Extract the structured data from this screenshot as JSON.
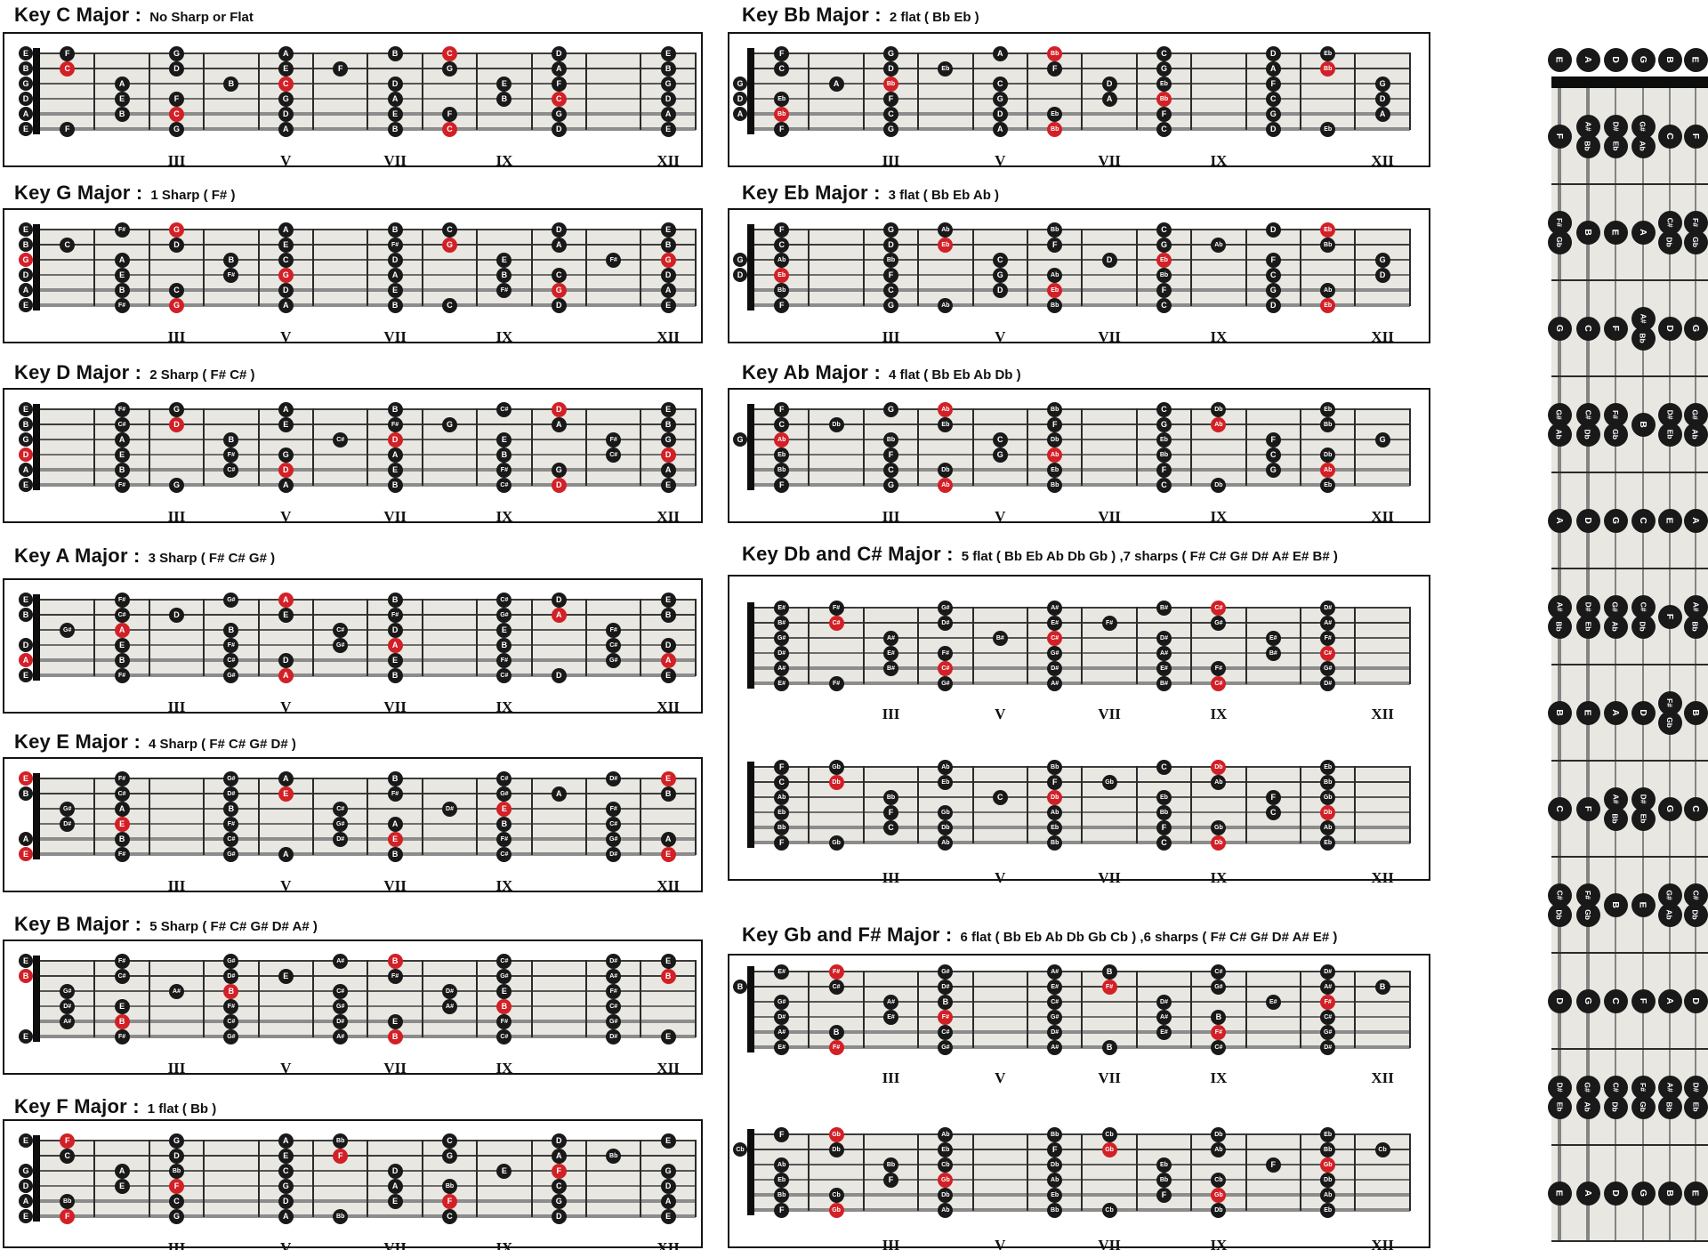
{
  "colors": {
    "root_red": "#d22027",
    "note_black": "#191919",
    "fretboard_bg": "#e9e7e1",
    "box_border": "#141414",
    "fret_line": "#2b2b2b",
    "nut_black": "#0d0d0d",
    "string_thin": "#3c3c3c",
    "string_mid": "#6e6e6e",
    "string_thick": "#8c8c8c",
    "numeral_color": "#111111",
    "page_bg": "#ffffff"
  },
  "fret_numerals": [
    {
      "fret": 3,
      "label": "III"
    },
    {
      "fret": 5,
      "label": "V"
    },
    {
      "fret": 7,
      "label": "VII"
    },
    {
      "fret": 9,
      "label": "IX"
    },
    {
      "fret": 12,
      "label": "XII"
    }
  ],
  "tuning_pitch_classes": [
    4,
    11,
    7,
    2,
    9,
    4
  ],
  "pitch_classes": {
    "C": 0,
    "C#": 1,
    "Db": 1,
    "D": 2,
    "D#": 3,
    "Eb": 3,
    "E": 4,
    "E#": 5,
    "F": 5,
    "F#": 6,
    "Gb": 6,
    "G": 7,
    "G#": 8,
    "Ab": 8,
    "A": 9,
    "A#": 10,
    "Bb": 10,
    "B": 11,
    "B#": 0,
    "Cb": 11
  },
  "sections": [
    {
      "id": "c-major",
      "title": "Key C Major :",
      "subtitle": "No Sharp or Flat",
      "boards": [
        {
          "root": "C",
          "scale": [
            "C",
            "D",
            "E",
            "F",
            "G",
            "A",
            "B"
          ]
        }
      ]
    },
    {
      "id": "g-major",
      "title": "Key G Major :",
      "subtitle": "1 Sharp ( F# )",
      "boards": [
        {
          "root": "G",
          "scale": [
            "G",
            "A",
            "B",
            "C",
            "D",
            "E",
            "F#"
          ]
        }
      ]
    },
    {
      "id": "d-major",
      "title": "Key D Major :",
      "subtitle": "2 Sharp  ( F# C# )",
      "boards": [
        {
          "root": "D",
          "scale": [
            "D",
            "E",
            "F#",
            "G",
            "A",
            "B",
            "C#"
          ]
        }
      ]
    },
    {
      "id": "a-major",
      "title": "Key A Major :",
      "subtitle": "3 Sharp  ( F# C# G# )",
      "boards": [
        {
          "root": "A",
          "scale": [
            "A",
            "B",
            "C#",
            "D",
            "E",
            "F#",
            "G#"
          ]
        }
      ]
    },
    {
      "id": "e-major",
      "title": "Key E Major :",
      "subtitle": "4 Sharp  ( F# C# G# D# )",
      "boards": [
        {
          "root": "E",
          "scale": [
            "E",
            "F#",
            "G#",
            "A",
            "B",
            "C#",
            "D#"
          ]
        }
      ]
    },
    {
      "id": "b-major",
      "title": "Key B Major :",
      "subtitle": "5 Sharp  ( F# C# G# D# A# )",
      "boards": [
        {
          "root": "B",
          "scale": [
            "B",
            "C#",
            "D#",
            "E",
            "F#",
            "G#",
            "A#"
          ]
        }
      ]
    },
    {
      "id": "f-major",
      "title": "Key F Major :",
      "subtitle": "1 flat  ( Bb )",
      "boards": [
        {
          "root": "F",
          "scale": [
            "F",
            "G",
            "A",
            "Bb",
            "C",
            "D",
            "E"
          ]
        }
      ]
    },
    {
      "id": "bb-major",
      "title": "Key Bb Major :",
      "subtitle": "2 flat  ( Bb Eb )",
      "boards": [
        {
          "root": "Bb",
          "scale": [
            "Bb",
            "C",
            "D",
            "Eb",
            "F",
            "G",
            "A"
          ]
        }
      ]
    },
    {
      "id": "eb-major",
      "title": "Key Eb Major :",
      "subtitle": "3 flat  ( Bb Eb Ab )",
      "boards": [
        {
          "root": "Eb",
          "scale": [
            "Eb",
            "F",
            "G",
            "Ab",
            "Bb",
            "C",
            "D"
          ]
        }
      ]
    },
    {
      "id": "ab-major",
      "title": "Key Ab Major :",
      "subtitle": "4 flat  ( Bb Eb Ab Db )",
      "boards": [
        {
          "root": "Ab",
          "scale": [
            "Ab",
            "Bb",
            "C",
            "Db",
            "Eb",
            "F",
            "G"
          ]
        }
      ]
    },
    {
      "id": "db-cs-major",
      "title": "Key Db and C# Major :",
      "subtitle": "5 flat  ( Bb Eb Ab Db Gb ) ,7 sharps ( F# C# G# D# A# E# B# )",
      "boards": [
        {
          "root": "C#",
          "scale": [
            "C#",
            "D#",
            "E#",
            "F#",
            "G#",
            "A#",
            "B#"
          ]
        },
        {
          "root": "Db",
          "scale": [
            "Db",
            "Eb",
            "F",
            "Gb",
            "Ab",
            "Bb",
            "C"
          ]
        }
      ]
    },
    {
      "id": "gb-fs-major",
      "title": "Key Gb and F# Major :",
      "subtitle": "6 flat  ( Bb Eb Ab Db Gb Cb ) ,6 sharps ( F# C# G# D# A# E# )",
      "boards": [
        {
          "root": "F#",
          "scale": [
            "F#",
            "G#",
            "A#",
            "B",
            "C#",
            "D#",
            "E#"
          ]
        },
        {
          "root": "Gb",
          "scale": [
            "Gb",
            "Ab",
            "Bb",
            "Cb",
            "Db",
            "Eb",
            "F"
          ]
        }
      ]
    }
  ],
  "exceptions": [
    {
      "section": "db-cs-major",
      "board": 1,
      "string": 4,
      "fret": 4
    }
  ],
  "vertical": {
    "open": [
      "E",
      "A",
      "D",
      "G",
      "B",
      "E"
    ],
    "rows": [
      [
        {
          "n": "F"
        },
        {
          "n": "A#",
          "f": "Bb"
        },
        {
          "n": "D#",
          "f": "Eb"
        },
        {
          "n": "G#",
          "f": "Ab"
        },
        {
          "n": "C"
        },
        {
          "n": "F"
        }
      ],
      [
        {
          "n": "F#",
          "f": "Gb"
        },
        {
          "n": "B"
        },
        {
          "n": "E"
        },
        {
          "n": "A"
        },
        {
          "n": "C#",
          "f": "Db"
        },
        {
          "n": "F#",
          "f": "Gb"
        }
      ],
      [
        {
          "n": "G"
        },
        {
          "n": "C"
        },
        {
          "n": "F"
        },
        {
          "n": "A#",
          "f": "Bb"
        },
        {
          "n": "D"
        },
        {
          "n": "G"
        }
      ],
      [
        {
          "n": "G#",
          "f": "Ab"
        },
        {
          "n": "C#",
          "f": "Db"
        },
        {
          "n": "F#",
          "f": "Gb"
        },
        {
          "n": "B"
        },
        {
          "n": "D#",
          "f": "Eb"
        },
        {
          "n": "G#",
          "f": "Ab"
        }
      ],
      [
        {
          "n": "A"
        },
        {
          "n": "D"
        },
        {
          "n": "G"
        },
        {
          "n": "C"
        },
        {
          "n": "E"
        },
        {
          "n": "A"
        }
      ],
      [
        {
          "n": "A#",
          "f": "Bb"
        },
        {
          "n": "D#",
          "f": "Eb"
        },
        {
          "n": "G#",
          "f": "Ab"
        },
        {
          "n": "C#",
          "f": "Db"
        },
        {
          "n": "F"
        },
        {
          "n": "A#",
          "f": "Bb"
        }
      ],
      [
        {
          "n": "B"
        },
        {
          "n": "E"
        },
        {
          "n": "A"
        },
        {
          "n": "D"
        },
        {
          "n": "F#",
          "f": "Gb"
        },
        {
          "n": "B"
        }
      ],
      [
        {
          "n": "C"
        },
        {
          "n": "F"
        },
        {
          "n": "A#",
          "f": "Bb"
        },
        {
          "n": "D#",
          "f": "Eb"
        },
        {
          "n": "G"
        },
        {
          "n": "C"
        }
      ],
      [
        {
          "n": "C#",
          "f": "Db"
        },
        {
          "n": "F#",
          "f": "Gb"
        },
        {
          "n": "B"
        },
        {
          "n": "E"
        },
        {
          "n": "G#",
          "f": "Ab"
        },
        {
          "n": "C#",
          "f": "Db"
        }
      ],
      [
        {
          "n": "D"
        },
        {
          "n": "G"
        },
        {
          "n": "C"
        },
        {
          "n": "F"
        },
        {
          "n": "A"
        },
        {
          "n": "D"
        }
      ],
      [
        {
          "n": "D#",
          "f": "Eb"
        },
        {
          "n": "G#",
          "f": "Ab"
        },
        {
          "n": "C#",
          "f": "Db"
        },
        {
          "n": "F#",
          "f": "Gb"
        },
        {
          "n": "A#",
          "f": "Bb"
        },
        {
          "n": "D#",
          "f": "Eb"
        }
      ],
      [
        {
          "n": "E"
        },
        {
          "n": "A"
        },
        {
          "n": "D"
        },
        {
          "n": "G"
        },
        {
          "n": "B"
        },
        {
          "n": "E"
        }
      ]
    ]
  }
}
